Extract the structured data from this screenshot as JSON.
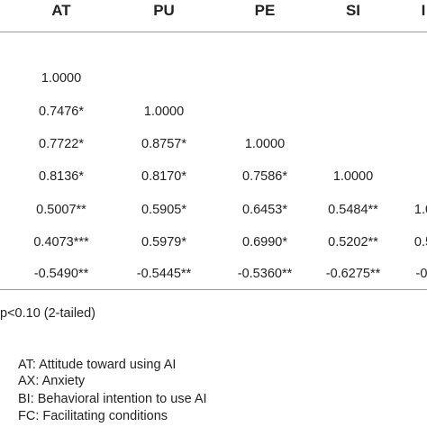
{
  "columns": [
    "AT",
    "PU",
    "PE",
    "SI",
    "I"
  ],
  "rows": [
    [
      "1.0000",
      "",
      "",
      "",
      ""
    ],
    [
      "0.7476*",
      "1.0000",
      "",
      "",
      ""
    ],
    [
      "0.7722*",
      "0.8757*",
      "1.0000",
      "",
      ""
    ],
    [
      "0.8136*",
      "0.8170*",
      "0.7586*",
      "1.0000",
      ""
    ],
    [
      "0.5007**",
      "0.5905*",
      "0.6453*",
      "0.5484**",
      "1.0"
    ],
    [
      "0.4073***",
      "0.5979*",
      "0.6990*",
      "0.5202**",
      "0.5"
    ],
    [
      "-0.5490**",
      "-0.5445**",
      "-0.5360**",
      "-0.6275**",
      "-0."
    ]
  ],
  "note": "p<0.10 (2-tailed)",
  "legend": [
    "AT: Attitude toward using AI",
    "AX: Anxiety",
    "BI: Behavioral intention to use AI",
    "FC: Facilitating conditions"
  ]
}
